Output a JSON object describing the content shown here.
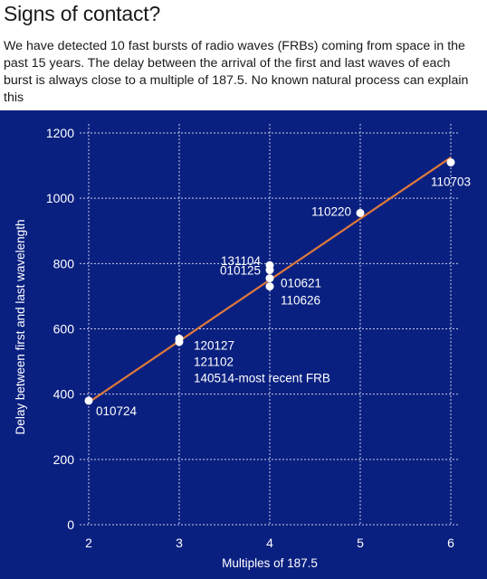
{
  "header": {
    "title": "Signs of contact?",
    "subtitle": "We have detected 10 fast bursts of radio waves (FRBs) coming from space in the past 15 years. The delay between the arrival of the first and last waves of each burst is always close to a multiple of 187.5. No known natural process can explain this"
  },
  "chart_data": {
    "type": "scatter",
    "title": "Signs of contact?",
    "xlabel": "Multiples of 187.5",
    "ylabel": "Delay between first and last wavelength",
    "xlim": [
      2,
      6
    ],
    "ylim": [
      0,
      1200
    ],
    "xticks": [
      2,
      3,
      4,
      5,
      6
    ],
    "yticks": [
      0,
      200,
      400,
      600,
      800,
      1000,
      1200
    ],
    "grid": true,
    "points": [
      {
        "x": 2,
        "y": 380,
        "label": "010724"
      },
      {
        "x": 3,
        "y": 570,
        "label": "120127"
      },
      {
        "x": 3,
        "y": 560,
        "label": ""
      },
      {
        "x": 4,
        "y": 795,
        "label": "131104"
      },
      {
        "x": 4,
        "y": 780,
        "label": "010125"
      },
      {
        "x": 4,
        "y": 755,
        "label": "010621"
      },
      {
        "x": 4,
        "y": 730,
        "label": "110626"
      },
      {
        "x": 5,
        "y": 955,
        "label": "110220"
      },
      {
        "x": 6,
        "y": 1110,
        "label": "110703"
      }
    ],
    "extra_labels": [
      "121102",
      "140514-most recent FRB"
    ],
    "trendline": {
      "x": [
        2,
        6
      ],
      "y": [
        375,
        1125
      ]
    },
    "colors": {
      "background": "#0a2080",
      "line": "#e07a3a",
      "points": "#ffffff",
      "grid": "#c8cde8"
    }
  }
}
